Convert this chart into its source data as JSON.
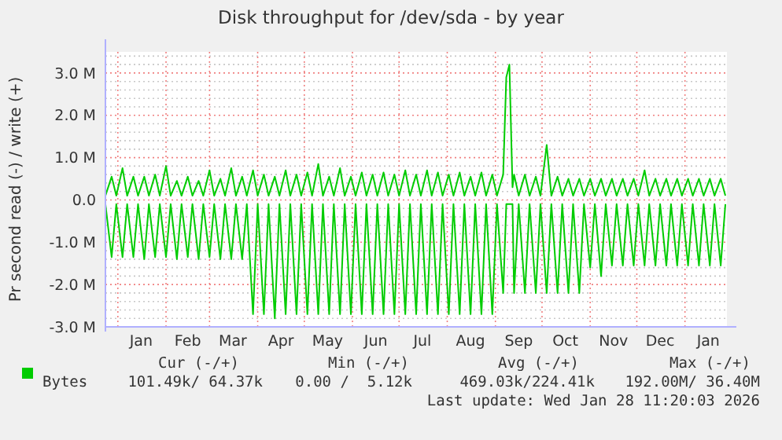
{
  "chart_data": {
    "type": "line",
    "title": "Disk throughput for /dev/sda - by year",
    "ylabel": "Pr second read (-) / write (+)",
    "x": [
      "2024-12-24",
      "2024-12-28",
      "2024-12-31",
      "2025-01-04",
      "2025-01-07",
      "2025-01-11",
      "2025-01-14",
      "2025-01-18",
      "2025-01-21",
      "2025-01-25",
      "2025-01-28",
      "2025-02-01",
      "2025-02-04",
      "2025-02-08",
      "2025-02-11",
      "2025-02-15",
      "2025-02-18",
      "2025-02-22",
      "2025-02-25",
      "2025-03-01",
      "2025-03-04",
      "2025-03-08",
      "2025-03-11",
      "2025-03-15",
      "2025-03-18",
      "2025-03-22",
      "2025-03-25",
      "2025-03-29",
      "2025-04-01",
      "2025-04-05",
      "2025-04-08",
      "2025-04-12",
      "2025-04-15",
      "2025-04-19",
      "2025-04-22",
      "2025-04-26",
      "2025-04-29",
      "2025-05-03",
      "2025-05-06",
      "2025-05-10",
      "2025-05-13",
      "2025-05-17",
      "2025-05-20",
      "2025-05-24",
      "2025-05-27",
      "2025-05-31",
      "2025-06-03",
      "2025-06-07",
      "2025-06-10",
      "2025-06-14",
      "2025-06-17",
      "2025-06-21",
      "2025-06-24",
      "2025-06-28",
      "2025-07-01",
      "2025-07-05",
      "2025-07-08",
      "2025-07-12",
      "2025-07-15",
      "2025-07-19",
      "2025-07-22",
      "2025-07-26",
      "2025-07-29",
      "2025-08-02",
      "2025-08-05",
      "2025-08-09",
      "2025-08-12",
      "2025-08-16",
      "2025-08-19",
      "2025-08-23",
      "2025-08-26",
      "2025-08-30",
      "2025-09-02",
      "2025-09-06",
      "2025-09-08",
      "2025-09-10",
      "2025-09-12",
      "2025-09-13",
      "2025-09-16",
      "2025-09-20",
      "2025-09-23",
      "2025-09-27",
      "2025-09-30",
      "2025-10-04",
      "2025-10-07",
      "2025-10-11",
      "2025-10-14",
      "2025-10-18",
      "2025-10-21",
      "2025-10-25",
      "2025-10-28",
      "2025-11-01",
      "2025-11-04",
      "2025-11-08",
      "2025-11-11",
      "2025-11-15",
      "2025-11-18",
      "2025-11-22",
      "2025-11-25",
      "2025-11-29",
      "2025-12-02",
      "2025-12-06",
      "2025-12-09",
      "2025-12-13",
      "2025-12-16",
      "2025-12-20",
      "2025-12-23",
      "2025-12-27",
      "2025-12-30",
      "2026-01-03",
      "2026-01-06",
      "2026-01-10",
      "2026-01-13",
      "2026-01-17",
      "2026-01-20",
      "2026-01-24",
      "2026-01-27"
    ],
    "series": [
      {
        "name": "Bytes",
        "color": "#00cc00",
        "values": [
          0.1,
          0.55,
          0.1,
          0.75,
          0.1,
          0.55,
          0.1,
          0.55,
          0.1,
          0.6,
          0.1,
          0.8,
          0.1,
          0.45,
          0.1,
          0.55,
          0.1,
          0.45,
          0.1,
          0.7,
          0.1,
          0.5,
          0.1,
          0.75,
          0.1,
          0.55,
          0.1,
          0.7,
          0.1,
          0.6,
          0.1,
          0.55,
          0.1,
          0.7,
          0.1,
          0.6,
          0.1,
          0.65,
          0.1,
          0.85,
          0.1,
          0.55,
          0.1,
          0.75,
          0.1,
          0.55,
          0.1,
          0.65,
          0.1,
          0.6,
          0.1,
          0.65,
          0.1,
          0.6,
          0.1,
          0.7,
          0.1,
          0.6,
          0.1,
          0.7,
          0.1,
          0.65,
          0.1,
          0.6,
          0.1,
          0.65,
          0.1,
          0.55,
          0.1,
          0.65,
          0.1,
          0.6,
          0.1,
          0.6,
          2.9,
          3.2,
          0.3,
          0.6,
          0.1,
          0.6,
          0.1,
          0.55,
          0.1,
          1.3,
          0.1,
          0.55,
          0.1,
          0.5,
          0.1,
          0.5,
          0.1,
          0.5,
          0.1,
          0.5,
          0.1,
          0.5,
          0.1,
          0.5,
          0.1,
          0.5,
          0.1,
          0.7,
          0.1,
          0.5,
          0.1,
          0.5,
          0.1,
          0.5,
          0.1,
          0.5,
          0.1,
          0.5,
          0.1,
          0.5,
          0.1,
          0.5,
          0.1
        ]
      },
      {
        "color": "#00cc00",
        "values": [
          -0.1,
          -1.35,
          -0.1,
          -1.35,
          -0.1,
          -1.35,
          -0.1,
          -1.4,
          -0.1,
          -1.35,
          -0.1,
          -1.35,
          -0.1,
          -1.4,
          -0.1,
          -1.35,
          -0.1,
          -1.4,
          -0.1,
          -1.35,
          -0.1,
          -1.4,
          -0.1,
          -1.4,
          -0.1,
          -1.4,
          -0.1,
          -2.7,
          -0.1,
          -2.7,
          -0.1,
          -2.8,
          -0.1,
          -2.7,
          -0.1,
          -2.7,
          -0.1,
          -2.7,
          -0.1,
          -2.7,
          -0.1,
          -2.7,
          -0.1,
          -2.7,
          -0.1,
          -2.7,
          -0.1,
          -2.7,
          -0.1,
          -2.7,
          -0.1,
          -2.7,
          -0.1,
          -2.7,
          -0.1,
          -2.7,
          -0.1,
          -2.7,
          -0.1,
          -2.7,
          -0.1,
          -2.7,
          -0.1,
          -2.7,
          -0.1,
          -2.7,
          -0.1,
          -2.7,
          -0.1,
          -2.7,
          -0.1,
          -2.7,
          -0.1,
          -2.2,
          -0.1,
          -0.1,
          -0.1,
          -2.2,
          -0.1,
          -2.2,
          -0.1,
          -2.2,
          -0.1,
          -2.2,
          -0.1,
          -2.2,
          -0.1,
          -2.2,
          -0.1,
          -2.2,
          -0.1,
          -1.6,
          -0.1,
          -1.8,
          -0.1,
          -1.55,
          -0.1,
          -1.55,
          -0.1,
          -1.55,
          -0.1,
          -1.55,
          -0.1,
          -1.55,
          -0.1,
          -1.55,
          -0.1,
          -1.55,
          -0.1,
          -1.55,
          -0.1,
          -1.55,
          -0.1,
          -1.55,
          -0.1,
          -1.55,
          -0.1
        ]
      }
    ],
    "xlim": [
      "2024-12-24",
      "2026-01-28"
    ],
    "xticks": [
      {
        "value": "2025-01-01",
        "label": null
      },
      {
        "value": "2025-01-16",
        "label": "Jan"
      },
      {
        "value": "2025-02-01",
        "label": null
      },
      {
        "value": "2025-02-15",
        "label": "Feb"
      },
      {
        "value": "2025-03-01",
        "label": null
      },
      {
        "value": "2025-03-16",
        "label": "Mar"
      },
      {
        "value": "2025-04-01",
        "label": null
      },
      {
        "value": "2025-04-16",
        "label": "Apr"
      },
      {
        "value": "2025-05-01",
        "label": null
      },
      {
        "value": "2025-05-16",
        "label": "May"
      },
      {
        "value": "2025-06-01",
        "label": null
      },
      {
        "value": "2025-06-16",
        "label": "Jun"
      },
      {
        "value": "2025-07-01",
        "label": null
      },
      {
        "value": "2025-07-16",
        "label": "Jul"
      },
      {
        "value": "2025-08-01",
        "label": null
      },
      {
        "value": "2025-08-16",
        "label": "Aug"
      },
      {
        "value": "2025-09-01",
        "label": null
      },
      {
        "value": "2025-09-16",
        "label": "Sep"
      },
      {
        "value": "2025-10-01",
        "label": null
      },
      {
        "value": "2025-10-16",
        "label": "Oct"
      },
      {
        "value": "2025-11-01",
        "label": null
      },
      {
        "value": "2025-11-16",
        "label": "Nov"
      },
      {
        "value": "2025-12-01",
        "label": null
      },
      {
        "value": "2025-12-16",
        "label": "Dec"
      },
      {
        "value": "2026-01-01",
        "label": null
      },
      {
        "value": "2026-01-16",
        "label": "Jan"
      }
    ],
    "ylim": [
      -3,
      3.5
    ],
    "yticks": [
      {
        "value": -3,
        "label": "-3.0 M"
      },
      {
        "value": -2,
        "label": "-2.0 M"
      },
      {
        "value": -1,
        "label": "-1.0 M"
      },
      {
        "value": 0,
        "label": "0.0"
      },
      {
        "value": 1,
        "label": "1.0 M"
      },
      {
        "value": 2,
        "label": "2.0 M"
      },
      {
        "value": 3,
        "label": "3.0 M"
      },
      {
        "value": -2.8,
        "label": null
      },
      {
        "value": -2.6,
        "label": null
      },
      {
        "value": -2.4,
        "label": null
      },
      {
        "value": -2.2,
        "label": null
      },
      {
        "value": -1.8,
        "label": null
      },
      {
        "value": -1.6,
        "label": null
      },
      {
        "value": -1.4,
        "label": null
      },
      {
        "value": -1.2,
        "label": null
      },
      {
        "value": -0.8,
        "label": null
      },
      {
        "value": -0.6,
        "label": null
      },
      {
        "value": -0.4,
        "label": null
      },
      {
        "value": -0.2,
        "label": null
      },
      {
        "value": 0.2,
        "label": null
      },
      {
        "value": 0.4,
        "label": null
      },
      {
        "value": 0.6,
        "label": null
      },
      {
        "value": 0.8,
        "label": null
      },
      {
        "value": 1.2,
        "label": null
      },
      {
        "value": 1.4,
        "label": null
      },
      {
        "value": 1.6,
        "label": null
      },
      {
        "value": 1.8,
        "label": null
      },
      {
        "value": 2.2,
        "label": null
      },
      {
        "value": 2.4,
        "label": null
      },
      {
        "value": 2.6,
        "label": null
      },
      {
        "value": 2.8,
        "label": null
      },
      {
        "value": 3.2,
        "label": null
      },
      {
        "value": 3.4,
        "label": null
      }
    ],
    "grid": true,
    "legend": "bottom",
    "marker": "none",
    "line_style": "solid",
    "annotations": [
      "Cur (-/+)",
      "101.49k/ 64.37k",
      "Min (-/+)",
      "0.00 /  5.12k",
      "Avg (-/+)",
      "469.03k/224.41k",
      "Max (-/+)",
      "192.00M/ 36.40M",
      "Last update: Wed Jan 28 11:20:03 2026"
    ]
  }
}
